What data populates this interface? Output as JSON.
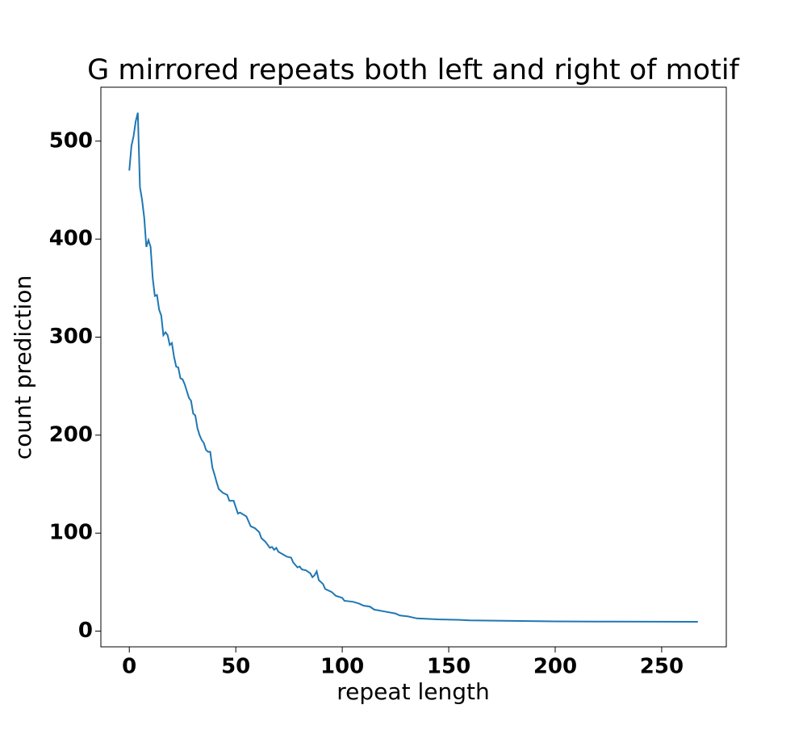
{
  "chart_data": {
    "type": "line",
    "title": "G mirrored repeats both left and right of motif",
    "x_label": "repeat length",
    "y_label": "count prediction",
    "x": [
      0,
      1,
      2,
      3,
      4,
      5,
      6,
      7,
      8,
      9,
      10,
      11,
      12,
      13,
      14,
      15,
      16,
      17,
      18,
      19,
      20,
      21,
      22,
      23,
      24,
      25,
      26,
      27,
      28,
      29,
      30,
      31,
      32,
      33,
      34,
      35,
      36,
      37,
      38,
      39,
      40,
      41,
      42,
      44,
      46,
      47,
      49,
      51,
      52,
      55,
      57,
      59,
      61,
      62,
      64,
      66,
      67,
      68,
      69,
      70,
      74,
      76,
      77,
      79,
      80,
      81,
      83,
      85,
      86,
      87,
      88,
      89,
      91,
      92,
      95,
      97,
      100,
      101,
      105,
      108,
      110,
      113,
      115,
      120,
      125,
      127,
      131,
      135,
      145,
      155,
      160,
      180,
      200,
      220,
      267
    ],
    "series": [
      {
        "name": "count prediction",
        "color": "#1f77b4",
        "values": [
          470,
          495,
          505,
          520,
          529,
          453,
          440,
          422,
          392,
          399,
          392,
          360,
          342,
          343,
          328,
          322,
          302,
          305,
          302,
          292,
          294,
          280,
          270,
          269,
          258,
          257,
          252,
          245,
          238,
          235,
          222,
          220,
          207,
          200,
          195,
          192,
          185,
          183,
          183,
          167,
          160,
          152,
          145,
          141,
          139,
          133,
          133,
          120,
          121,
          117,
          107,
          105,
          101,
          95,
          91,
          85,
          86,
          83,
          85,
          81,
          76,
          75,
          70,
          65,
          66,
          63,
          62,
          59,
          55,
          57,
          61,
          52,
          48,
          43,
          40,
          36,
          34,
          31,
          30,
          28,
          26,
          25,
          22,
          20,
          18,
          16,
          15,
          13,
          12,
          11.5,
          11,
          10.5,
          10,
          9.8,
          9.5
        ]
      }
    ],
    "xlim": [
      -13.35,
      280.35
    ],
    "ylim": [
      -16,
      555
    ],
    "xticks": [
      0,
      50,
      100,
      150,
      200,
      250
    ],
    "yticks": [
      0,
      100,
      200,
      300,
      400,
      500
    ]
  }
}
